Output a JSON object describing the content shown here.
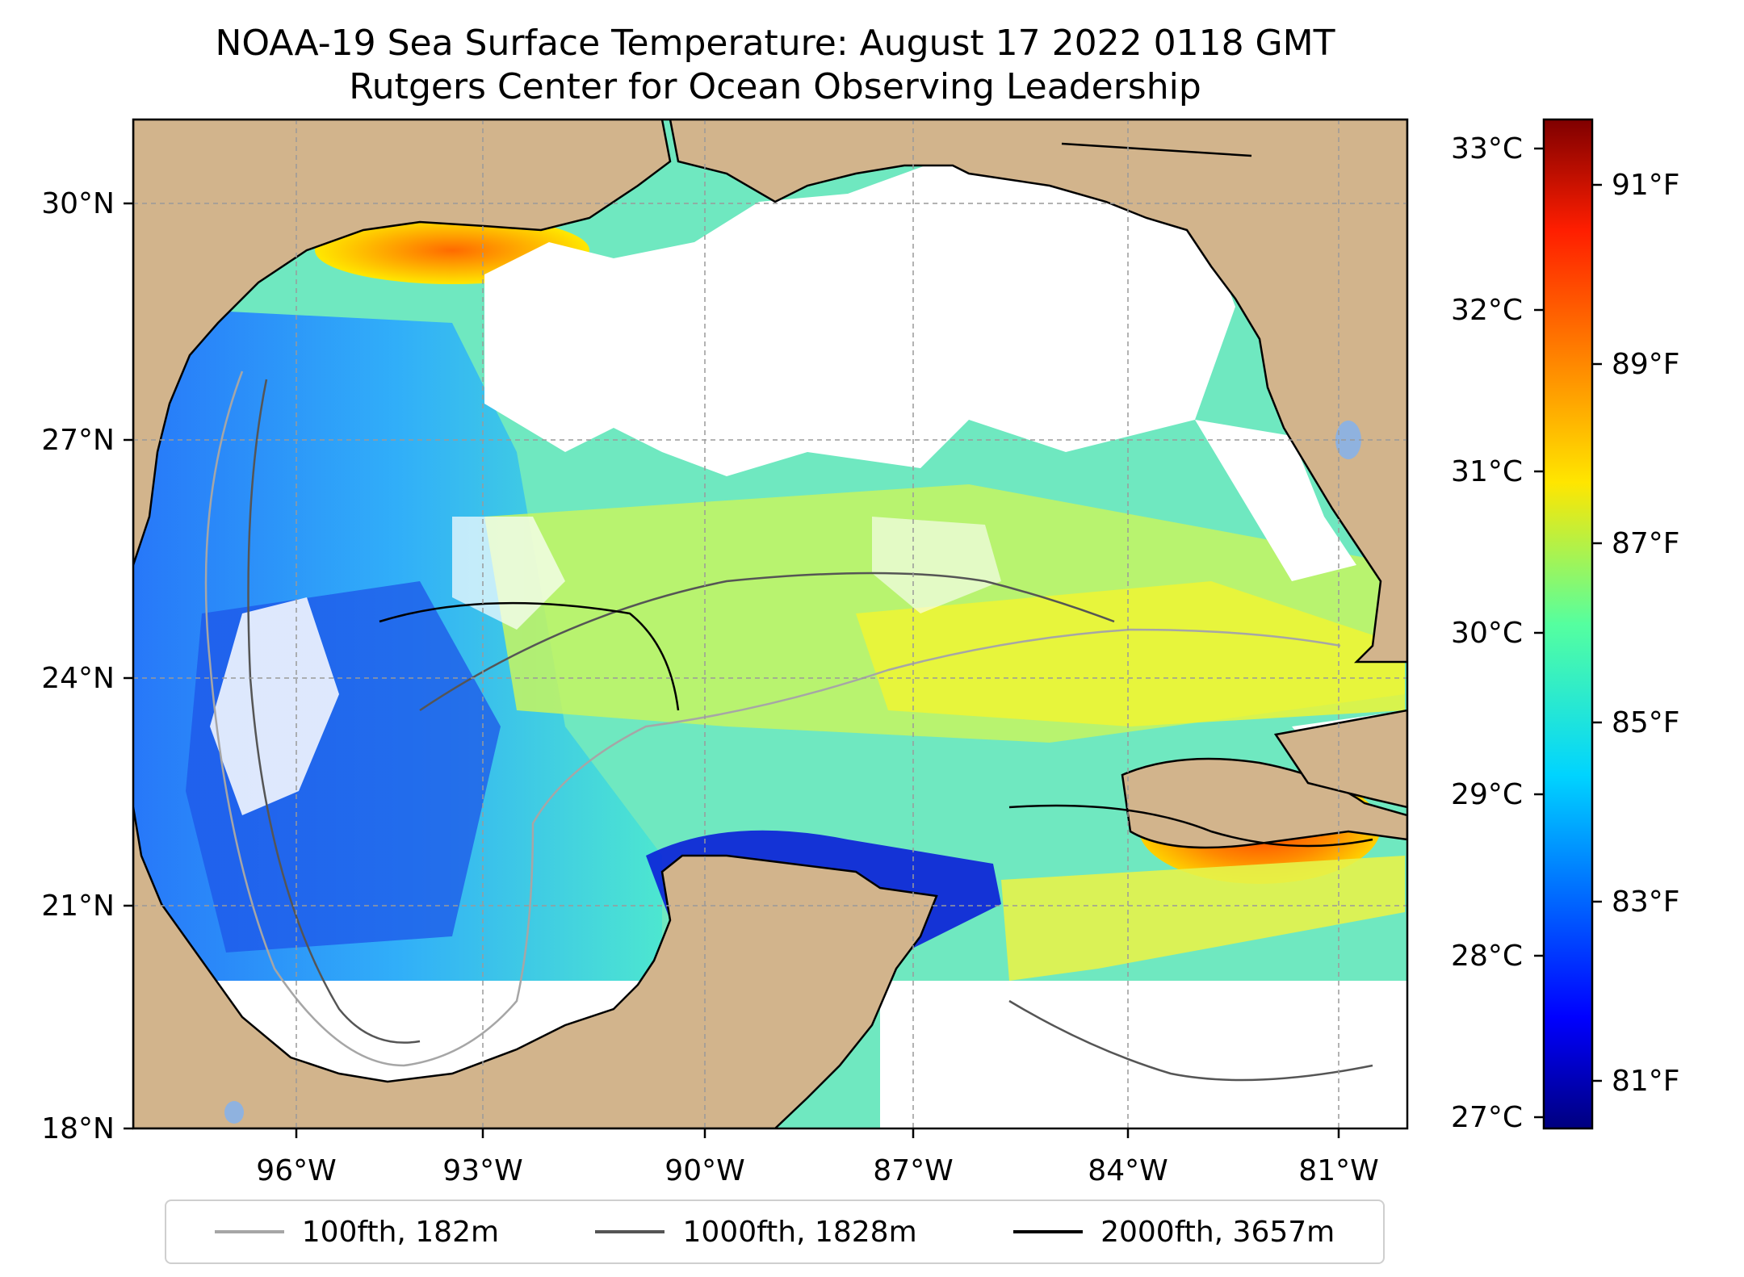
{
  "title": "NOAA-19 Sea Surface Temperature: August 17 2022 0118 GMT",
  "subtitle": "Rutgers Center for Ocean Observing Leadership",
  "map": {
    "lon_ticks": [
      "96°W",
      "93°W",
      "90°W",
      "87°W",
      "84°W",
      "81°W"
    ],
    "lat_ticks": [
      "30°N",
      "27°N",
      "24°N",
      "21°N",
      "18°N"
    ]
  },
  "colorbar": {
    "celsius_ticks": [
      "33°C",
      "32°C",
      "31°C",
      "30°C",
      "29°C",
      "28°C",
      "27°C"
    ],
    "fahrenheit_ticks": [
      "91°F",
      "89°F",
      "87°F",
      "85°F",
      "83°F",
      "81°F"
    ],
    "range_c": [
      27,
      33.2
    ],
    "colormap": "jet"
  },
  "legend": [
    {
      "label": "100fth, 182m",
      "color": "#a6a6a6"
    },
    {
      "label": "1000fth, 1828m",
      "color": "#555555"
    },
    {
      "label": "2000fth, 3657m",
      "color": "#000000"
    }
  ],
  "colors": {
    "land": "#d2b48c",
    "cloud": "#ffffff",
    "lake": "#8fb2df"
  }
}
